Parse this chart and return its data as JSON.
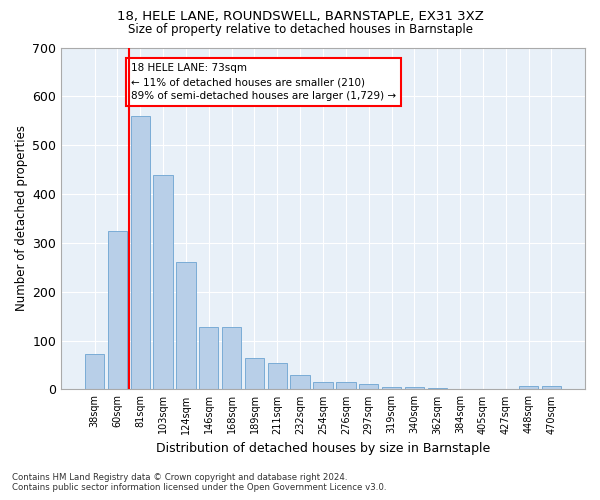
{
  "title1": "18, HELE LANE, ROUNDSWELL, BARNSTAPLE, EX31 3XZ",
  "title2": "Size of property relative to detached houses in Barnstaple",
  "xlabel": "Distribution of detached houses by size in Barnstaple",
  "ylabel": "Number of detached properties",
  "bar_color": "#b8cfe8",
  "bar_edge_color": "#7aacd6",
  "categories": [
    "38sqm",
    "60sqm",
    "81sqm",
    "103sqm",
    "124sqm",
    "146sqm",
    "168sqm",
    "189sqm",
    "211sqm",
    "232sqm",
    "254sqm",
    "276sqm",
    "297sqm",
    "319sqm",
    "340sqm",
    "362sqm",
    "384sqm",
    "405sqm",
    "427sqm",
    "448sqm",
    "470sqm"
  ],
  "values": [
    73,
    325,
    560,
    440,
    260,
    128,
    128,
    65,
    55,
    30,
    15,
    15,
    11,
    5,
    5,
    2,
    0,
    0,
    0,
    6,
    6
  ],
  "vline_x": 1.5,
  "vline_color": "red",
  "annotation_text": "18 HELE LANE: 73sqm\n← 11% of detached houses are smaller (210)\n89% of semi-detached houses are larger (1,729) →",
  "annotation_box_color": "white",
  "annotation_box_edge_color": "red",
  "ylim": [
    0,
    700
  ],
  "yticks": [
    0,
    100,
    200,
    300,
    400,
    500,
    600,
    700
  ],
  "bg_color": "#e8f0f8",
  "grid_color": "white",
  "footer": "Contains HM Land Registry data © Crown copyright and database right 2024.\nContains public sector information licensed under the Open Government Licence v3.0."
}
